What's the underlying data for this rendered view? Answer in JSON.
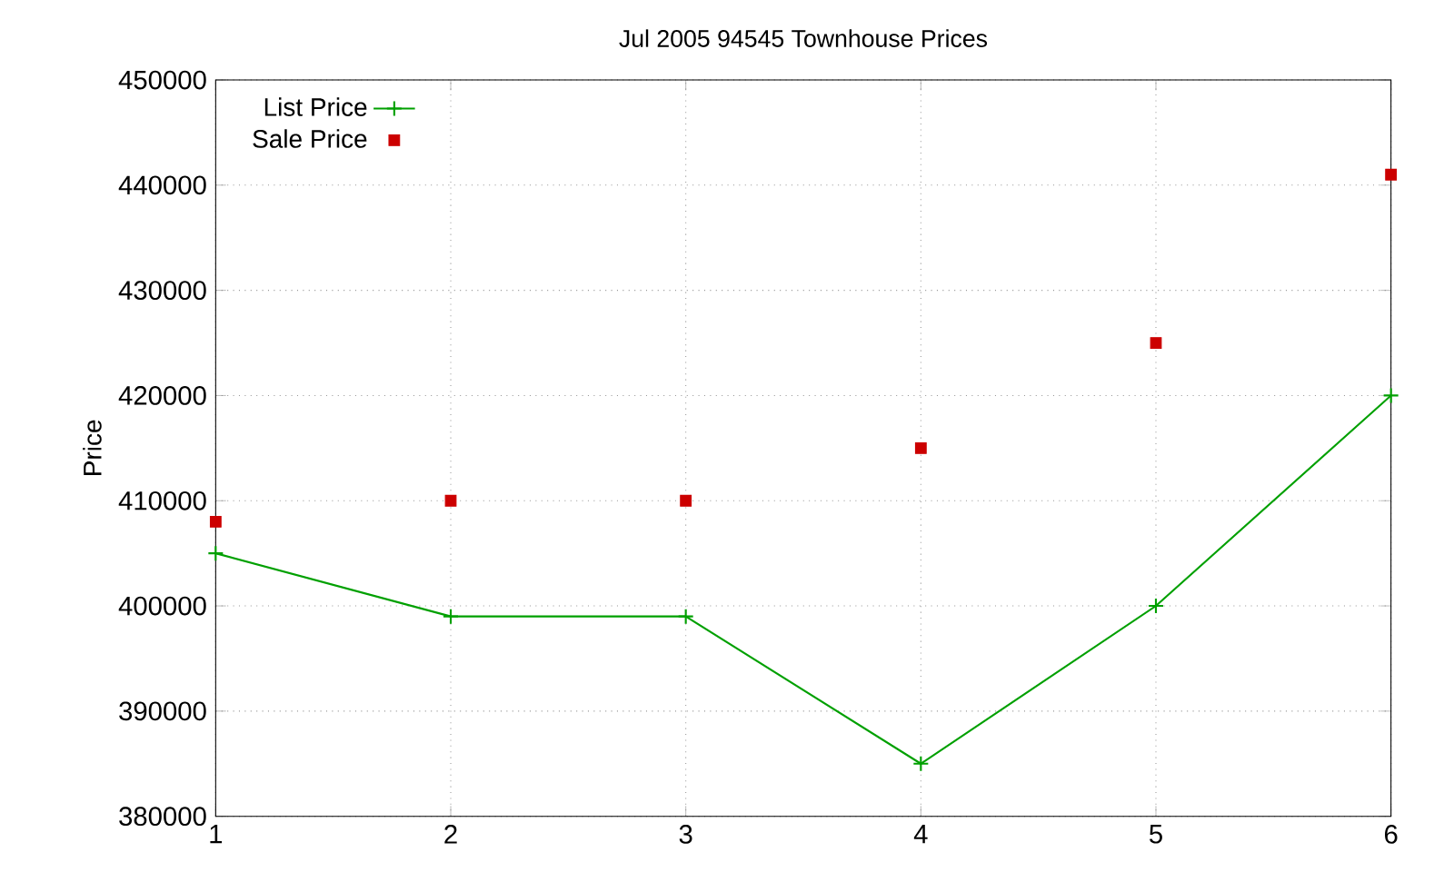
{
  "chart_data": {
    "type": "line",
    "title": "Jul 2005 94545 Townhouse Prices",
    "ylabel": "Price",
    "x": [
      1,
      2,
      3,
      4,
      5,
      6
    ],
    "series": [
      {
        "name": "List Price",
        "color": "#00a000",
        "marker": "cross",
        "values": [
          405000,
          399000,
          399000,
          385000,
          400000,
          420000
        ]
      },
      {
        "name": "Sale Price",
        "type": "scatter",
        "color": "#cc0000",
        "marker": "square",
        "values": [
          408000,
          410000,
          410000,
          415000,
          425000,
          441000
        ]
      }
    ],
    "xlim": [
      1,
      6
    ],
    "xticks": [
      1,
      2,
      3,
      4,
      5,
      6
    ],
    "ylim": [
      380000,
      450000
    ],
    "yticks": [
      380000,
      390000,
      400000,
      410000,
      420000,
      430000,
      440000,
      450000
    ],
    "grid": true,
    "legend": "top left"
  }
}
